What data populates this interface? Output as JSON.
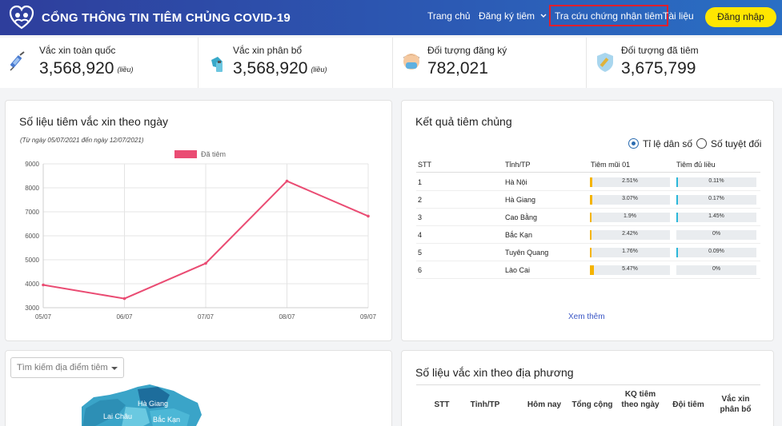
{
  "header": {
    "brand": "CỔNG THÔNG TIN TIÊM CHỦNG COVID-19",
    "nav": [
      "Trang chủ",
      "Đăng ký tiêm",
      "Tra cứu chứng nhận tiêm",
      "Tài liệu"
    ],
    "login": "Đăng nhập"
  },
  "stats": [
    {
      "label": "Vắc xin toàn quốc",
      "value": "3,568,920",
      "unit": "(liều)",
      "icon": "syringe-icon"
    },
    {
      "label": "Vắc xin phân bổ",
      "value": "3,568,920",
      "unit": "(liều)",
      "icon": "gloved-hand-vaccine-icon"
    },
    {
      "label": "Đối tượng đăng ký",
      "value": "782,021",
      "unit": "",
      "icon": "masked-person-icon"
    },
    {
      "label": "Đối tượng đã tiêm",
      "value": "3,675,799",
      "unit": "",
      "icon": "shield-syringe-icon"
    }
  ],
  "daily_chart": {
    "title": "Số liệu tiêm vắc xin theo ngày",
    "subtitle": "(Từ ngày 05/07/2021 đến ngày 12/07/2021)"
  },
  "chart_data": {
    "type": "line",
    "x": [
      "05/07",
      "06/07",
      "07/07",
      "08/07",
      "09/07"
    ],
    "series": [
      {
        "name": "Đã tiêm",
        "values": [
          3950,
          3380,
          4850,
          8280,
          6820
        ],
        "color": "#ea4c73"
      }
    ],
    "yticks": [
      "9000",
      "8000",
      "7000",
      "6000",
      "5000",
      "4000",
      "3000"
    ],
    "ylim": [
      3000,
      9000
    ],
    "grid": true,
    "legend": "top-center"
  },
  "results": {
    "title": "Kết quả tiêm chủng",
    "radio_options": [
      "Tỉ lệ dân số",
      "Số tuyệt đối"
    ],
    "selected": 0,
    "columns": [
      "STT",
      "Tỉnh/TP",
      "Tiêm mũi 01",
      "Tiêm đủ liều"
    ],
    "rows": [
      {
        "stt": "1",
        "province": "Hà Nội",
        "dose1": "2.51%",
        "dose1_val": 2.51,
        "full": "0.11%",
        "full_val": 0.11
      },
      {
        "stt": "2",
        "province": "Hà Giang",
        "dose1": "3.07%",
        "dose1_val": 3.07,
        "full": "0.17%",
        "full_val": 0.17
      },
      {
        "stt": "3",
        "province": "Cao Bằng",
        "dose1": "1.9%",
        "dose1_val": 1.9,
        "full": "1.45%",
        "full_val": 1.45
      },
      {
        "stt": "4",
        "province": "Bắc Kạn",
        "dose1": "2.42%",
        "dose1_val": 2.42,
        "full": "0%",
        "full_val": 0
      },
      {
        "stt": "5",
        "province": "Tuyên Quang",
        "dose1": "1.76%",
        "dose1_val": 1.76,
        "full": "0.09%",
        "full_val": 0.09
      },
      {
        "stt": "6",
        "province": "Lào Cai",
        "dose1": "5.47%",
        "dose1_val": 5.47,
        "full": "0%",
        "full_val": 0
      }
    ],
    "see_more": "Xem thêm"
  },
  "map": {
    "search_placeholder": "Tìm kiếm địa điểm tiêm",
    "labels": [
      "Hà Giang",
      "Lai Châu",
      "Bắc Kạn"
    ]
  },
  "local": {
    "title": "Số liệu vắc xin theo địa phương",
    "columns": [
      "STT",
      "Tỉnh/TP",
      "Hôm nay",
      "Tổng cộng",
      "KQ tiêm theo ngày",
      "Đội tiêm",
      "Vắc xin phân bổ"
    ]
  }
}
